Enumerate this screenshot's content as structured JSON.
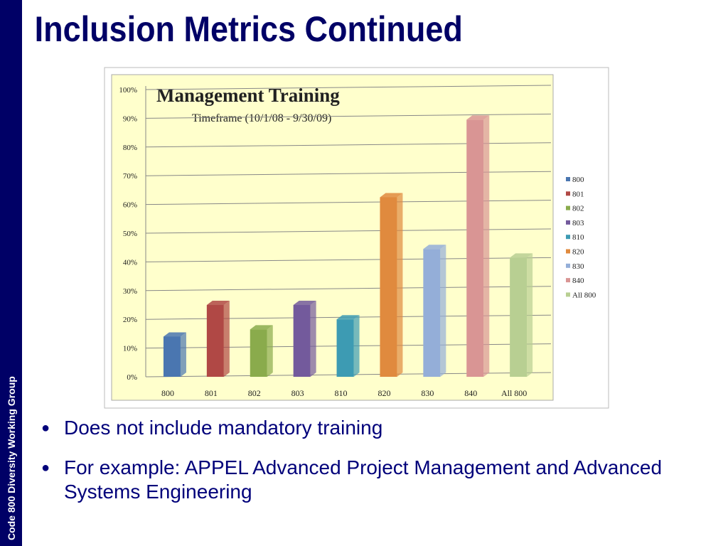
{
  "slide": {
    "title": "Inclusion Metrics Continued",
    "sidebar": "Code 800 Diversity Working Group",
    "bullets": [
      "Does not include mandatory training",
      "For example: APPEL Advanced Project Management and Advanced Systems Engineering"
    ]
  },
  "chart_data": {
    "type": "bar",
    "title": "Management Training",
    "subtitle": "Timeframe (10/1/08 - 9/30/09)",
    "categories": [
      "800",
      "801",
      "802",
      "803",
      "810",
      "820",
      "830",
      "840",
      "All 800"
    ],
    "values": [
      14,
      25,
      16.5,
      25,
      20,
      62.5,
      44.5,
      89.5,
      41.5
    ],
    "colors": [
      "#4a76b0",
      "#b04845",
      "#8aab4c",
      "#735a9c",
      "#3d9bb3",
      "#e08a3e",
      "#94aed8",
      "#d99594",
      "#b8cf92"
    ],
    "ylim": [
      0,
      100
    ],
    "yticks": [
      {
        "value": 0,
        "label": "0%"
      },
      {
        "value": 10,
        "label": "10%"
      },
      {
        "value": 20,
        "label": "20%"
      },
      {
        "value": 30,
        "label": "30%"
      },
      {
        "value": 40,
        "label": "40%"
      },
      {
        "value": 50,
        "label": "50%"
      },
      {
        "value": 60,
        "label": "60%"
      },
      {
        "value": 70,
        "label": "70%"
      },
      {
        "value": 80,
        "label": "80%"
      },
      {
        "value": 90,
        "label": "90%"
      },
      {
        "value": 100,
        "label": "100%"
      }
    ],
    "grid": true,
    "legend": "right"
  }
}
